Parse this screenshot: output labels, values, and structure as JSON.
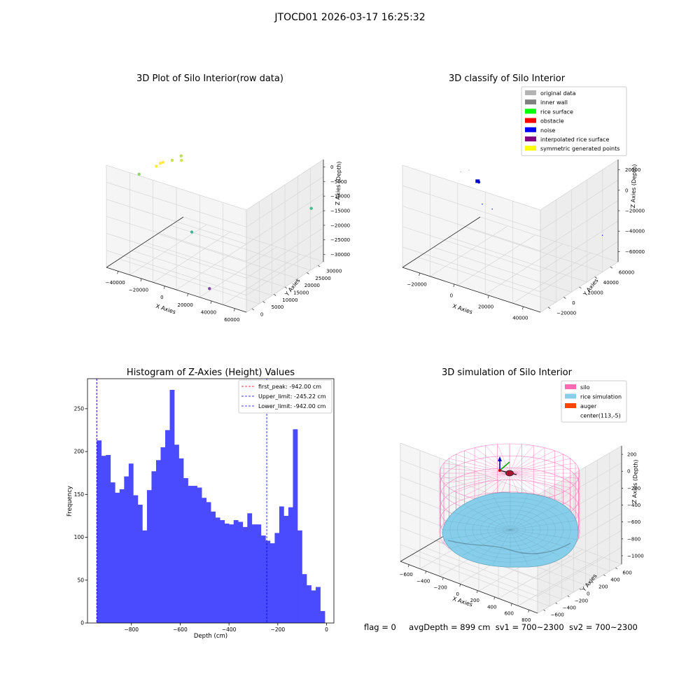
{
  "figure": {
    "suptitle": "JTOCD01 2026-03-17 16:25:32",
    "footer": {
      "flag": "flag = 0",
      "avg": "avgDepth = 899 cm",
      "sv1": "sv1 = 700~2300",
      "sv2": "sv2 = 700~2300"
    }
  },
  "chart_data": [
    {
      "type": "scatter",
      "projection": "3d",
      "title": "3D Plot of Silo Interior(row data)",
      "xlabel": "X Axies",
      "ylabel": "Y Axies",
      "zlabel": "Z Axies (Depth)",
      "xticks": [
        "−40000",
        "−20000",
        "0",
        "20000",
        "40000",
        "60000"
      ],
      "yticks": [
        "0",
        "5000",
        "10000",
        "15000",
        "20000",
        "25000",
        "30000"
      ],
      "zticks": [
        "0",
        "−5000",
        "−10000",
        "−15000",
        "−20000",
        "−25000",
        "−30000"
      ],
      "xlim": [
        -40000,
        60000
      ],
      "ylim": [
        0,
        30000
      ],
      "zlim": [
        -30000,
        0
      ],
      "colormap": "viridis by depth",
      "points": [
        {
          "x": -18000,
          "y": 9000,
          "z": -1000,
          "color": "#fde725"
        },
        {
          "x": -17000,
          "y": 9500,
          "z": -800,
          "color": "#fde725"
        },
        {
          "x": -19000,
          "y": 8000,
          "z": -1500,
          "color": "#fde725"
        },
        {
          "x": -15000,
          "y": 12000,
          "z": -1200,
          "color": "#bddf26"
        },
        {
          "x": -16000,
          "y": 16000,
          "z": -2000,
          "color": "#a8db34"
        },
        {
          "x": -12000,
          "y": 14000,
          "z": -1800,
          "color": "#c8e020"
        },
        {
          "x": -24000,
          "y": 4000,
          "z": -2500,
          "color": "#7ad151"
        },
        {
          "x": 55000,
          "y": 28000,
          "z": -14000,
          "color": "#2ab07f"
        },
        {
          "x": 10000,
          "y": 6000,
          "z": -16000,
          "color": "#22a884"
        },
        {
          "x": 30000,
          "y": 2000,
          "z": -28000,
          "color": "#6a2c8c"
        }
      ]
    },
    {
      "type": "scatter",
      "projection": "3d",
      "title": "3D classify of Silo Interior",
      "xlabel": "X Axies",
      "ylabel": "Y Axies",
      "zlabel": "Z Axies (Depth)",
      "xticks": [
        "−20000",
        "0",
        "20000",
        "40000"
      ],
      "yticks": [
        "−20000",
        "0",
        "20000",
        "40000",
        "60000"
      ],
      "zticks": [
        "20000",
        "0",
        "−20000",
        "−40000",
        "−60000"
      ],
      "xlim": [
        -30000,
        55000
      ],
      "ylim": [
        -25000,
        65000
      ],
      "zlim": [
        -60000,
        20000
      ],
      "legend": [
        {
          "label": "original data",
          "color": "#b3b3b3"
        },
        {
          "label": "inner wall",
          "color": "#808080"
        },
        {
          "label": "rice surface",
          "color": "#00ff00"
        },
        {
          "label": "obstacle",
          "color": "#ff0000"
        },
        {
          "label": "noise",
          "color": "#0000ff"
        },
        {
          "label": "interpolated rice surface",
          "color": "#800080"
        },
        {
          "label": "symmetric generated points",
          "color": "#ffff00"
        }
      ],
      "legend_loc": "upper right",
      "points": [
        {
          "x": -5000,
          "y": 15000,
          "z": 0,
          "color": "#0000cc",
          "size": 5
        },
        {
          "x": -4500,
          "y": 15500,
          "z": -500,
          "color": "#0000cc",
          "size": 3
        },
        {
          "x": -18000,
          "y": 20000,
          "z": 0,
          "color": "#b3b3b3",
          "size": 1
        },
        {
          "x": -14000,
          "y": 22000,
          "z": 2000,
          "color": "#b3b3b3",
          "size": 1
        },
        {
          "x": 8000,
          "y": -4000,
          "z": -4000,
          "color": "#0000ff",
          "size": 1
        },
        {
          "x": 12000,
          "y": 0,
          "z": -8000,
          "color": "#0000ff",
          "size": 1
        },
        {
          "x": 48000,
          "y": 60000,
          "z": -40000,
          "color": "#0000ff",
          "size": 1
        }
      ]
    },
    {
      "type": "bar",
      "subtype": "histogram",
      "title": "Histogram of Z-Axies (Height) Values",
      "xlabel": "Depth (cm)",
      "ylabel": "Frequency",
      "xlim": [
        -980,
        30
      ],
      "ylim": [
        0,
        285
      ],
      "xticks": [
        -800,
        -600,
        -400,
        -200,
        0
      ],
      "xtick_labels": [
        "−800",
        "−600",
        "−400",
        "−200",
        "0"
      ],
      "yticks": [
        0,
        50,
        100,
        150,
        200,
        250
      ],
      "bin_start": -942,
      "bin_width": 18.7,
      "values": [
        213,
        195,
        196,
        164,
        152,
        156,
        171,
        186,
        149,
        138,
        108,
        155,
        177,
        190,
        205,
        225,
        272,
        208,
        192,
        169,
        160,
        160,
        158,
        146,
        141,
        130,
        123,
        120,
        116,
        115,
        120,
        118,
        112,
        128,
        115,
        115,
        102,
        96,
        93,
        105,
        136,
        125,
        135,
        226,
        108,
        57,
        44,
        38,
        42,
        14
      ],
      "bar_color": "#4a4aff",
      "vlines": [
        {
          "x": -942,
          "label": "first_peak: -942.00 cm",
          "color": "#ff0000"
        },
        {
          "x": -245.22,
          "label": "Upper_limit: -245.22 cm",
          "color": "#0000ff"
        },
        {
          "x": -942,
          "label": "Lower_limit: -942.00 cm",
          "color": "#0000ff"
        }
      ]
    },
    {
      "type": "surface",
      "projection": "3d",
      "title": "3D simulation of Silo Interior",
      "xlabel": "X Axies",
      "ylabel": "Y Axies",
      "zlabel": "Z Axies (Depth)",
      "xticks": [
        "−600",
        "−400",
        "−200",
        "0",
        "200",
        "400",
        "600",
        "800"
      ],
      "yticks": [
        "−600",
        "−400",
        "−200",
        "0",
        "200",
        "400",
        "600"
      ],
      "zticks": [
        "200",
        "0",
        "−200",
        "−400",
        "−600",
        "−800",
        "−1000"
      ],
      "xlim": [
        -600,
        800
      ],
      "ylim": [
        -600,
        600
      ],
      "zlim": [
        -1000,
        200
      ],
      "legend": [
        {
          "label": "silo",
          "color": "#ff69b4"
        },
        {
          "label": "rice simulation",
          "color": "#87ceeb"
        },
        {
          "label": "auger",
          "color": "#ff4500"
        },
        {
          "label": "center(113,-5)",
          "color": ""
        }
      ],
      "silo_color": "#ff69b4",
      "rice_color": "#87ceeb"
    }
  ]
}
